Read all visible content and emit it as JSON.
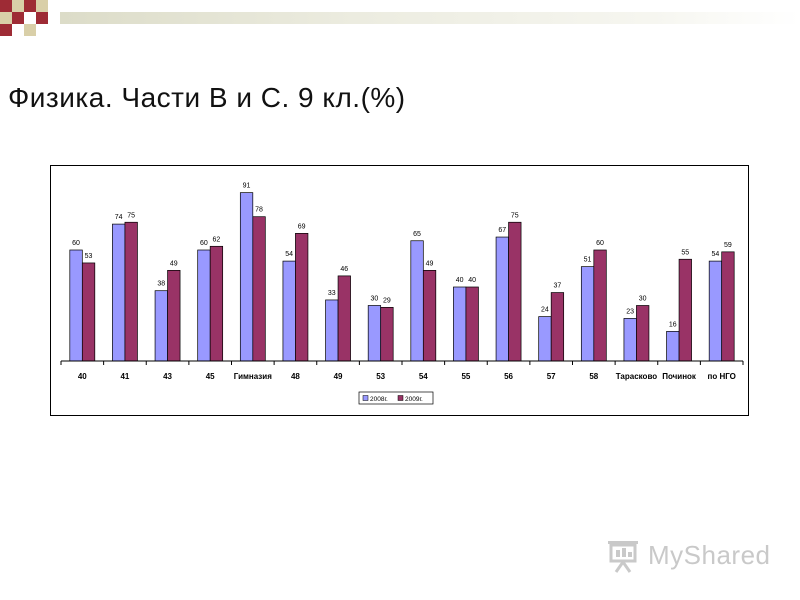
{
  "slide": {
    "title": "Физика. Части В и С. 9 кл.(%)",
    "watermark": "MyShared",
    "colors": {
      "deco_red": "#9e2b35",
      "deco_light": "#d9cfa8",
      "series_2008": "#9999ff",
      "series_2009": "#993366"
    }
  },
  "chart_data": {
    "type": "bar",
    "title": "",
    "xlabel": "",
    "ylabel": "",
    "ylim": [
      0,
      100
    ],
    "grid": false,
    "legend_position": "bottom",
    "categories": [
      "40",
      "41",
      "43",
      "45",
      "Гимназия",
      "48",
      "49",
      "53",
      "54",
      "55",
      "56",
      "57",
      "58",
      "Тарасково",
      "Починок",
      "по НГО"
    ],
    "series": [
      {
        "name": "2008г.",
        "color": "#9999ff",
        "values": [
          60,
          74,
          38,
          60,
          91,
          54,
          33,
          30,
          65,
          40,
          67,
          24,
          51,
          23,
          16,
          54
        ]
      },
      {
        "name": "2009г.",
        "color": "#993366",
        "values": [
          53,
          75,
          49,
          62,
          78,
          69,
          46,
          29,
          49,
          40,
          75,
          37,
          60,
          30,
          55,
          59
        ]
      }
    ]
  }
}
